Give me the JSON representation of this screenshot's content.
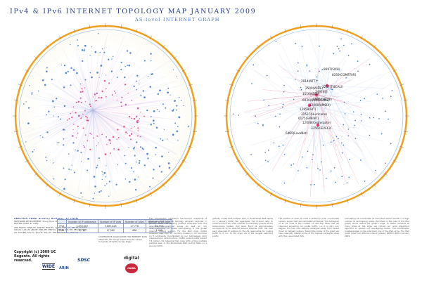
{
  "header": {
    "title": "IPv4 & IPv6 INTERNET TOPOLOGY MAP JANUARY 2009",
    "subtitle": "AS-level INTERNET GRAPH"
  },
  "ipv6_graph": {
    "nodes": [
      {
        "label": "6939(HURRICANE)"
      },
      {
        "label": "8697(SIXX)"
      },
      {
        "label": "8359(COMSTAR)"
      },
      {
        "label": "2914(NTT)"
      },
      {
        "label": "2500(WIDE)"
      },
      {
        "label": "1516(KDDI)"
      },
      {
        "label": "3257(TISCALI)"
      },
      {
        "label": "2497(IIJ)"
      },
      {
        "label": "6695(DECIX)"
      },
      {
        "label": "12000(AMSIX)"
      },
      {
        "label": "12859(BIT)"
      },
      {
        "label": "31537(Hurricane)"
      },
      {
        "label": "6175(SPRINT)"
      },
      {
        "label": "12008(Centergate)"
      },
      {
        "label": "3356(LEVEL3)"
      },
      {
        "label": "6435(LavaNet)"
      }
    ]
  },
  "credits": {
    "analysis": "ANALYSIS TEAM: Bradley Huffaker, kc claffy",
    "software": "SOFTWARE DEVELOPMENT: Young Hyun, Bradley Huffaker",
    "editing": "EDITING TEAM: kc claffy",
    "monitors": "ARK HOSTS: AMW-US, ARN-SE, BCN-ES, CJJ-KR, EWR-US, HEL-FI, HLZ-NZ, IAD-US, LAX-US, LEJ-DE, MNL-PH, MRY-US, NRT-JP, OSL-NO, PEK-CN, SAN-US, SAO-BR, SCL-CL, SJC-US, SQL-US, TPE-TW, YYZ-CA, ZRH-CH",
    "copyright": "Copyright (c) 2009 UC Regents. All rights reserved.",
    "sponsor": "COOPERATIVE ASSOCIATION FOR INTERNET DATA ANALYSIS, San Diego Supercomputer Center, University of California San Diego"
  },
  "stats_table": {
    "headers": [
      "",
      "Number of IP addresses",
      "Number of IP links",
      "Number of ASes",
      "Number of AS links"
    ],
    "rows": [
      [
        "IPv4",
        "4,833,087",
        "5,665,618",
        "17,776",
        "50,553"
      ],
      [
        "IPv6",
        "4,712",
        "17,589",
        "680",
        "1,468"
      ]
    ]
  },
  "text_columns": [
    "This visualization represents macroscopic snapshots of IPv4 and IPv6 Internet topology samples captured in January 2009. The plotting method illustrates both the extensive geographical scope as well as rich interconnectivity of nodes participating in the global Internet routing system. For the IPv4 map, CAIDA collected data from 33 monitors located in 20 countries on 5 continents. Coordinated by our Archipelago (Ark) measurement infrastructure, CAIDA probed paths toward 7.4 million /24 networks that cover 92% of the routable prefixes seen in the RouteViews BGP routing table on 1 January 2009.",
    "globally routed IPv6 prefixes seen in RouteViews BGP tables on 1 January 2009. We aggregate the IP-level data to construct IPv4 and IPv6 Internet connectivity graphs at the Autonomous System (AS) level. Each AS approximately corresponds to an Internet Service Provider (ISP). We map each observed IP address to the AS responsible for routing traffic to it, i.e., to the origin AS of the longest matching prefix.",
    "The position of each AS node is plotted in polar coordinates (radius, angle) that are calculated as follows. The outdegree of an AS node is the number of next-hop ASes that we observed accepting our probe traffic, i.e. it is AS's out-degree. The hue color reflects outdegree value, from lowest (blue) to highest (yellow). Toward the center of the graph we have manually labeled some of the highest outdegree ASes with their associated ISPs.",
    "Calculating AS coordinates as described above results in a large number of overlapping nodes (hundreds in the case of the IPv4 graph) which distort the graph's edge. To better visualize as many ASes at the edge, we refined our node placement algorithm to spread out overlapping nodes. This modification creates bulges in the outermost ring of the IPv4 circle. The IPv6 graph grew from 486 AS nodes in January 2008 to 680 in January 2009."
  ],
  "logos": [
    "WIDE",
    "ARIN",
    "SDSC",
    "digital",
    "CAIDA"
  ],
  "colors": {
    "title": "#2a3d86",
    "subtitle": "#4d78c8",
    "outer_ring": "#f0a020",
    "hub_links": "#e23a6e",
    "node_blue": "#3b74c4"
  }
}
